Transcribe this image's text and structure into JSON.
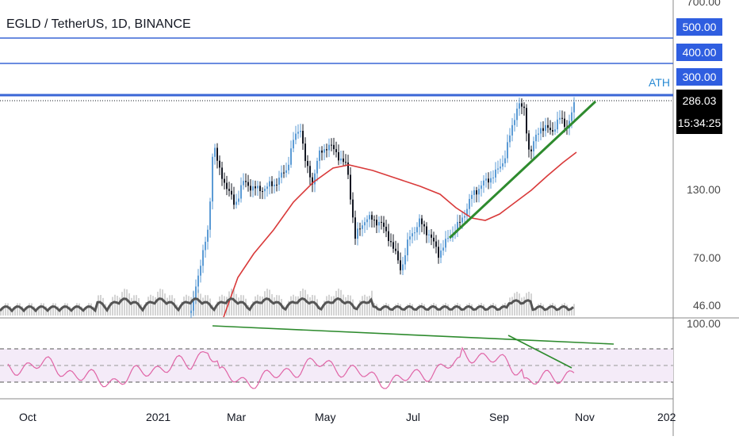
{
  "chart_data": {
    "type": "candlestick",
    "title": "EGLD / TetherUS, 1D, BINANCE",
    "symbol": "EGLD / TetherUS",
    "interval": "1D",
    "exchange": "BINANCE",
    "price_scale": "log",
    "price_ticks": [
      "700.00",
      "500.00",
      "400.00",
      "300.00",
      "130.00",
      "70.00",
      "46.00"
    ],
    "last_price": "286.03",
    "countdown": "15:34:25",
    "highlighted_levels": [
      "500.00",
      "400.00",
      "300.00"
    ],
    "ath_label": "ATH",
    "x_tick_labels": [
      "Oct",
      "2021",
      "Mar",
      "May",
      "Jul",
      "Sep",
      "Nov",
      "202"
    ],
    "rsi_tick": "100.00",
    "series_colors": {
      "up": "#5b9bd5",
      "down": "#131722",
      "moving_average": "#d93a3a",
      "rsi": "#e064a6",
      "volume_line": "#555555",
      "trendline": "#2e8b2e",
      "levels": "#3a66d6"
    }
  }
}
